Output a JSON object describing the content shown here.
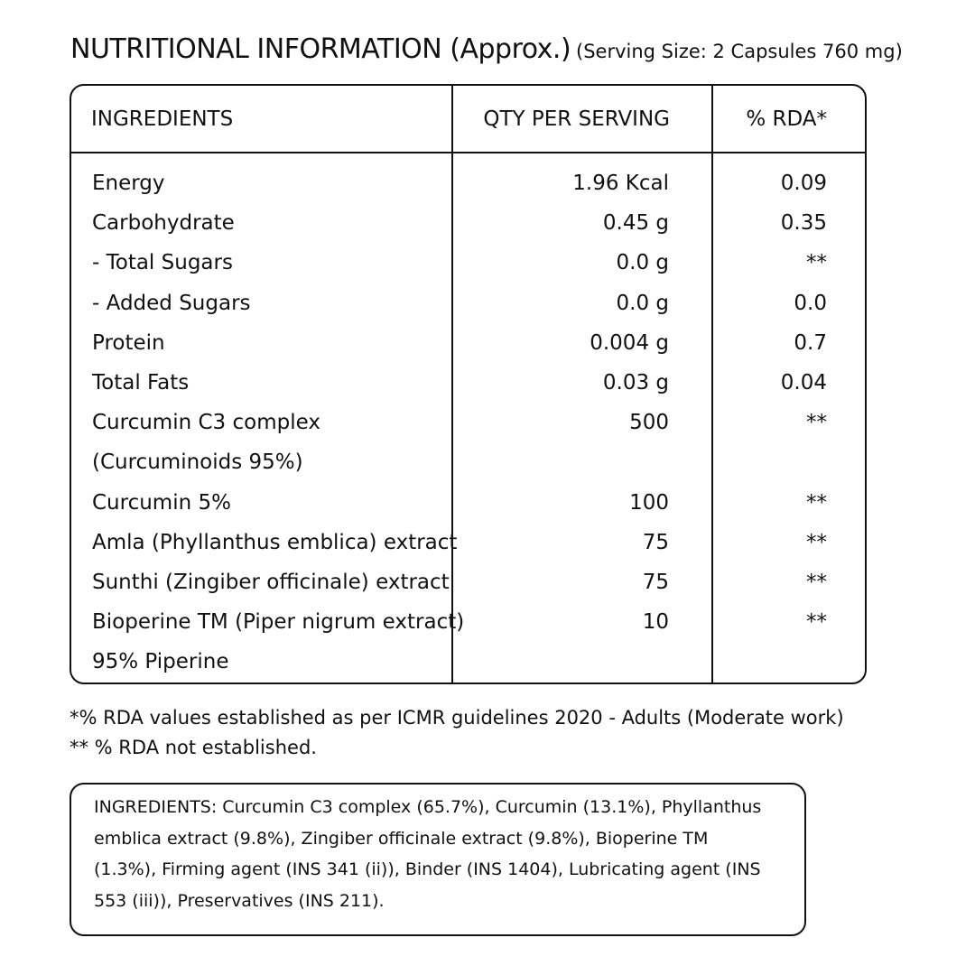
{
  "header": {
    "title": "NUTRITIONAL INFORMATION (Approx.)",
    "subtitle": "(Serving Size: 2 Capsules 760 mg)"
  },
  "table": {
    "headers": [
      "INGREDIENTS",
      "QTY PER SERVING",
      "% RDA*"
    ],
    "rows": [
      [
        "Energy",
        "1.96 Kcal",
        "0.09"
      ],
      [
        "Carbohydrate",
        "0.45 g",
        "0.35"
      ],
      [
        "- Total Sugars",
        "0.0 g",
        "**"
      ],
      [
        "- Added Sugars",
        "0.0 g",
        "0.0"
      ],
      [
        "Protein",
        "0.004 g",
        "0.7"
      ],
      [
        "Total Fats",
        "0.03 g",
        "0.04"
      ],
      [
        "Curcumin C3 complex",
        "500",
        "**"
      ],
      [
        "(Curcuminoids 95%)"
      ],
      [
        "Curcumin 5%",
        "100",
        "**"
      ],
      [
        "Amla (Phyllanthus emblica) extract",
        "75",
        "**"
      ],
      [
        "Sunthi (Zingiber officinale) extract",
        "75",
        "**"
      ],
      [
        "Bioperine TM (Piper nigrum extract)",
        "10",
        "**"
      ],
      [
        "95% Piperine"
      ]
    ]
  },
  "footnotes": [
    "*% RDA values established as per ICMR guidelines 2020 - Adults (Moderate work)",
    "** % RDA not established."
  ],
  "ingredients": {
    "lines": [
      "INGREDIENTS: Curcumin C3 complex (65.7%), Curcumin (13.1%), Phyllanthus",
      "emblica extract (9.8%), Zingiber officinale extract (9.8%), Bioperine TM",
      "(1.3%), Firming agent (INS 341 (ii)), Binder (INS 1404), Lubricating agent (INS",
      "553 (iii)), Preservatives (INS 211)."
    ]
  }
}
